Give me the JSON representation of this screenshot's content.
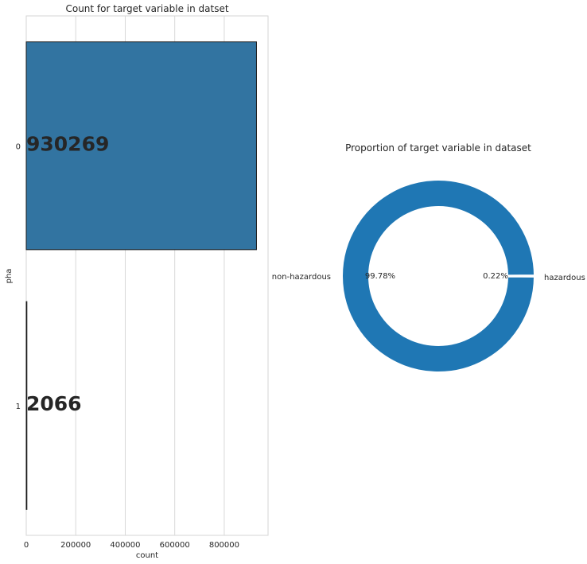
{
  "chart_data": [
    {
      "type": "bar",
      "orientation": "horizontal",
      "title": "Count for target variable in datset",
      "xlabel": "count",
      "ylabel": "pha",
      "categories": [
        "0",
        "1"
      ],
      "values": [
        930269,
        2066
      ],
      "value_labels": [
        "930269",
        "2066"
      ],
      "xlim": [
        0,
        977000
      ],
      "xticks": [
        0,
        200000,
        400000,
        600000,
        800000
      ],
      "xtick_labels": [
        "0",
        "200000",
        "400000",
        "600000",
        "800000"
      ],
      "grid": true,
      "bar_color": "#3274a1"
    },
    {
      "type": "pie",
      "donut": true,
      "title": "Proportion of target variable in dataset",
      "labels": [
        "non-hazardous",
        "hazardous"
      ],
      "values": [
        99.78,
        0.22
      ],
      "pct_labels": [
        "99.78%",
        "0.22%"
      ],
      "color": "#1f77b4"
    }
  ]
}
